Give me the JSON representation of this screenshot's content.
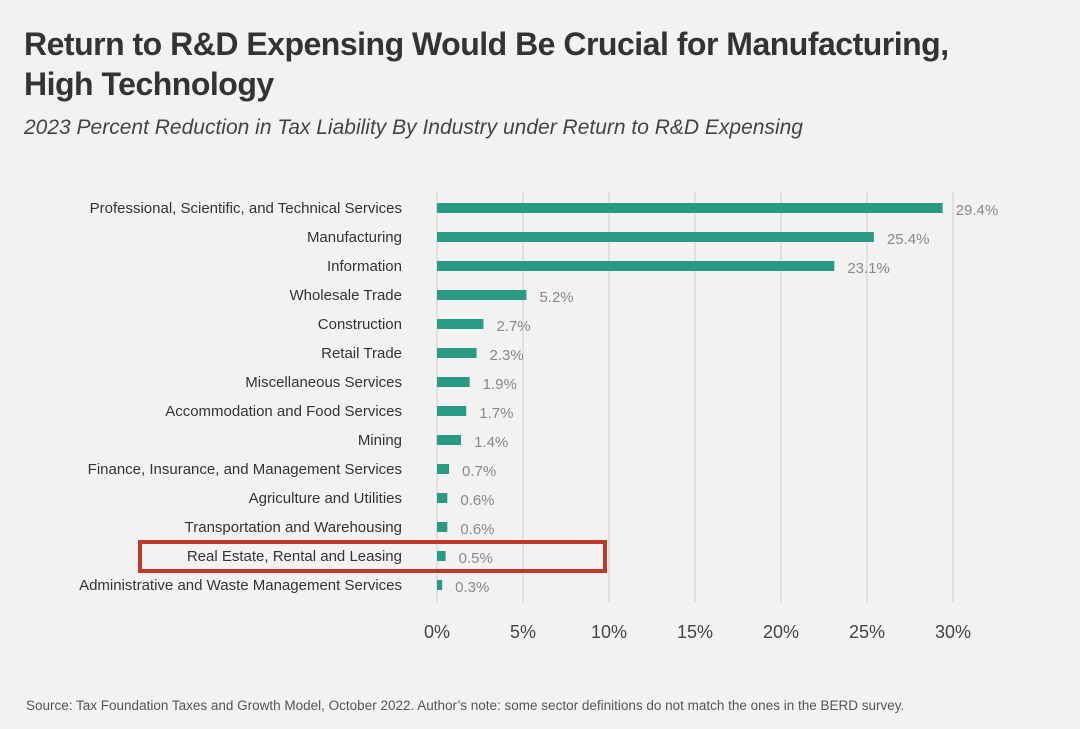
{
  "header": {
    "title": "Return to R&D Expensing Would Be Crucial for Manufacturing, High Technology",
    "subtitle": "2023 Percent Reduction in Tax Liability By Industry under Return to R&D Expensing"
  },
  "footer": {
    "source": "Source: Tax Foundation Taxes and Growth Model, October 2022. Author’s note: some sector definitions do not match the ones in the BERD survey."
  },
  "colors": {
    "bar": "#2a9a85",
    "grid": "#d9d9d9",
    "highlight": "#c0392b",
    "background": "#f2f2f2"
  },
  "chart_data": {
    "type": "bar",
    "orientation": "horizontal",
    "title": "Return to R&D Expensing Would Be Crucial for Manufacturing, High Technology",
    "subtitle": "2023 Percent Reduction in Tax Liability By Industry under Return to R&D Expensing",
    "categories": [
      "Professional, Scientific, and Technical Services",
      "Manufacturing",
      "Information",
      "Wholesale Trade",
      "Construction",
      "Retail Trade",
      "Miscellaneous Services",
      "Accommodation and Food Services",
      "Mining",
      "Finance, Insurance, and Management Services",
      "Agriculture and Utilities",
      "Transportation and Warehousing",
      "Real Estate, Rental and Leasing",
      "Administrative and Waste Management Services"
    ],
    "values": [
      29.4,
      25.4,
      23.1,
      5.2,
      2.7,
      2.3,
      1.9,
      1.7,
      1.4,
      0.7,
      0.6,
      0.6,
      0.5,
      0.3
    ],
    "value_labels": [
      "29.4%",
      "25.4%",
      "23.1%",
      "5.2%",
      "2.7%",
      "2.3%",
      "1.9%",
      "1.7%",
      "1.4%",
      "0.7%",
      "0.6%",
      "0.6%",
      "0.5%",
      "0.3%"
    ],
    "xlim": [
      0,
      30
    ],
    "xticks": [
      0,
      5,
      10,
      15,
      20,
      25,
      30
    ],
    "xtick_labels": [
      "0%",
      "5%",
      "10%",
      "15%",
      "20%",
      "25%",
      "30%"
    ],
    "grid": true,
    "highlighted_category": "Real Estate, Rental and Leasing"
  }
}
